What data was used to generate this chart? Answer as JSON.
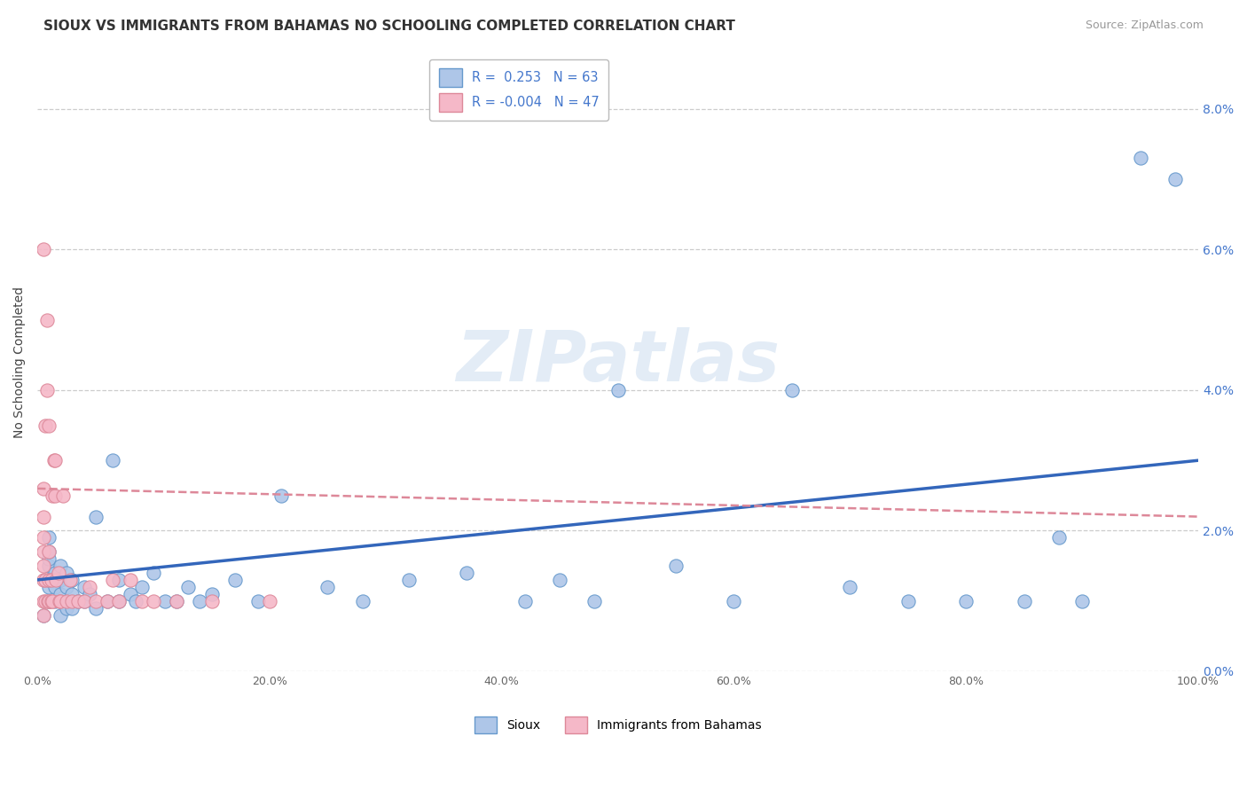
{
  "title": "SIOUX VS IMMIGRANTS FROM BAHAMAS NO SCHOOLING COMPLETED CORRELATION CHART",
  "source": "Source: ZipAtlas.com",
  "ylabel": "No Schooling Completed",
  "xlim": [
    0,
    1.0
  ],
  "ylim": [
    0,
    0.088
  ],
  "xticks": [
    0.0,
    0.2,
    0.4,
    0.6,
    0.8,
    1.0
  ],
  "yticks": [
    0.0,
    0.02,
    0.04,
    0.06,
    0.08
  ],
  "ytick_labels_right": [
    "0.0%",
    "2.0%",
    "4.0%",
    "6.0%",
    "8.0%"
  ],
  "xtick_labels": [
    "0.0%",
    "20.0%",
    "40.0%",
    "60.0%",
    "80.0%",
    "100.0%"
  ],
  "sioux_color": "#aec6e8",
  "bahamas_color": "#f5b8c8",
  "sioux_edge_color": "#6699cc",
  "bahamas_edge_color": "#dd8899",
  "sioux_line_color": "#3366bb",
  "bahamas_line_color": "#dd8899",
  "watermark": "ZIPatlas",
  "background_color": "#ffffff",
  "grid_color": "#cccccc",
  "right_axis_color": "#4477cc",
  "sioux_x": [
    0.005,
    0.01,
    0.01,
    0.01,
    0.01,
    0.01,
    0.01,
    0.01,
    0.015,
    0.015,
    0.015,
    0.02,
    0.02,
    0.02,
    0.02,
    0.02,
    0.025,
    0.025,
    0.025,
    0.03,
    0.03,
    0.03,
    0.035,
    0.04,
    0.04,
    0.045,
    0.05,
    0.05,
    0.06,
    0.065,
    0.07,
    0.07,
    0.08,
    0.085,
    0.09,
    0.1,
    0.11,
    0.12,
    0.13,
    0.14,
    0.15,
    0.17,
    0.19,
    0.21,
    0.25,
    0.28,
    0.32,
    0.37,
    0.42,
    0.45,
    0.48,
    0.5,
    0.55,
    0.6,
    0.65,
    0.7,
    0.75,
    0.8,
    0.85,
    0.88,
    0.9,
    0.95,
    0.98
  ],
  "sioux_y": [
    0.008,
    0.01,
    0.012,
    0.013,
    0.015,
    0.016,
    0.017,
    0.019,
    0.01,
    0.012,
    0.014,
    0.008,
    0.01,
    0.011,
    0.013,
    0.015,
    0.009,
    0.012,
    0.014,
    0.009,
    0.011,
    0.013,
    0.01,
    0.01,
    0.012,
    0.011,
    0.009,
    0.022,
    0.01,
    0.03,
    0.01,
    0.013,
    0.011,
    0.01,
    0.012,
    0.014,
    0.01,
    0.01,
    0.012,
    0.01,
    0.011,
    0.013,
    0.01,
    0.025,
    0.012,
    0.01,
    0.013,
    0.014,
    0.01,
    0.013,
    0.01,
    0.04,
    0.015,
    0.01,
    0.04,
    0.012,
    0.01,
    0.01,
    0.01,
    0.019,
    0.01,
    0.073,
    0.07
  ],
  "bahamas_x": [
    0.005,
    0.005,
    0.005,
    0.005,
    0.005,
    0.005,
    0.005,
    0.005,
    0.005,
    0.007,
    0.007,
    0.007,
    0.008,
    0.008,
    0.009,
    0.01,
    0.01,
    0.01,
    0.01,
    0.012,
    0.012,
    0.013,
    0.013,
    0.014,
    0.015,
    0.015,
    0.016,
    0.018,
    0.019,
    0.02,
    0.022,
    0.025,
    0.028,
    0.03,
    0.035,
    0.04,
    0.045,
    0.05,
    0.06,
    0.065,
    0.07,
    0.08,
    0.09,
    0.1,
    0.12,
    0.15,
    0.2
  ],
  "bahamas_y": [
    0.008,
    0.01,
    0.013,
    0.015,
    0.017,
    0.019,
    0.022,
    0.026,
    0.06,
    0.01,
    0.013,
    0.035,
    0.04,
    0.05,
    0.01,
    0.01,
    0.013,
    0.017,
    0.035,
    0.01,
    0.013,
    0.01,
    0.025,
    0.03,
    0.025,
    0.03,
    0.013,
    0.014,
    0.01,
    0.01,
    0.025,
    0.01,
    0.013,
    0.01,
    0.01,
    0.01,
    0.012,
    0.01,
    0.01,
    0.013,
    0.01,
    0.013,
    0.01,
    0.01,
    0.01,
    0.01,
    0.01
  ]
}
